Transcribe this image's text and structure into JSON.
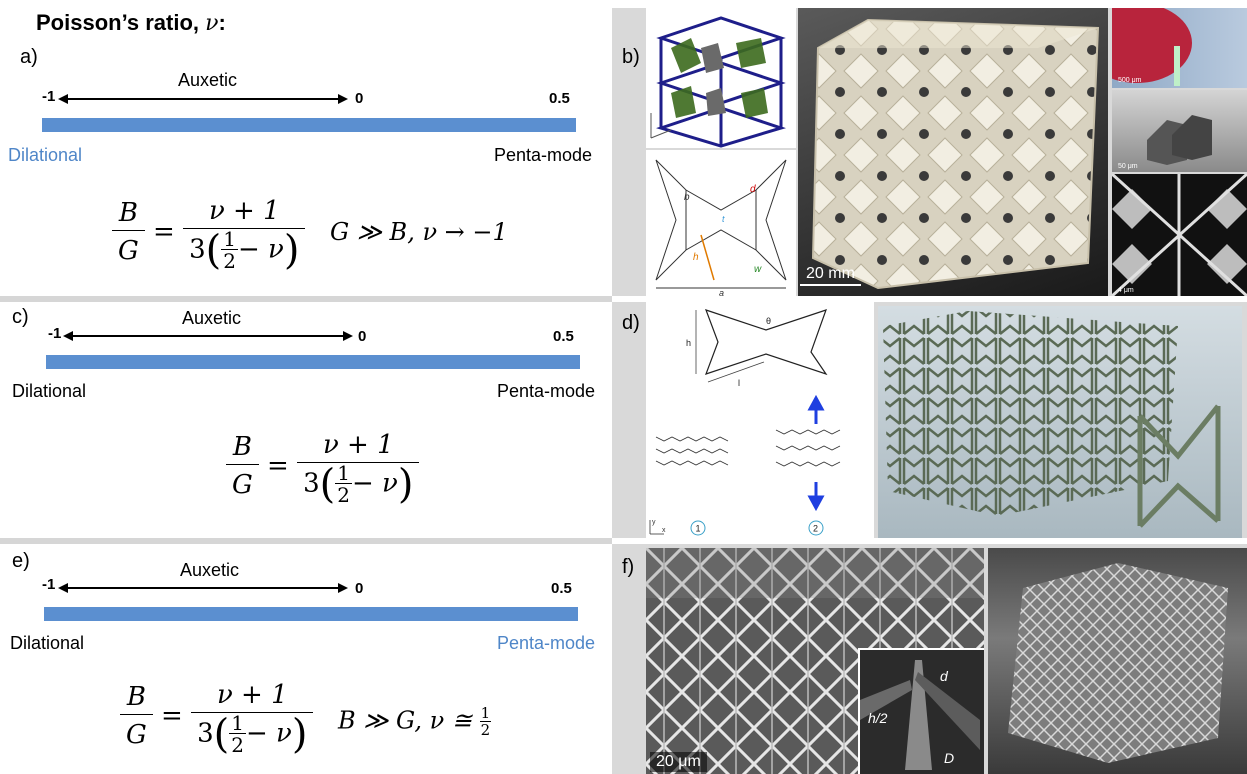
{
  "title": {
    "text": "Poisson’s ratio, ",
    "symbol": "ν",
    "colon": ":"
  },
  "panels": [
    {
      "label": "a)",
      "auxetic": "Auxetic",
      "ticks": [
        "-1",
        "0",
        "0.5"
      ],
      "left": "Dilational",
      "right": "Penta-mode",
      "left_color": "#4f86c8",
      "right_color": "#000000"
    },
    {
      "label": "c)",
      "auxetic": "Auxetic",
      "ticks": [
        "-1",
        "0",
        "0.5"
      ],
      "left": "Dilational",
      "right": "Penta-mode",
      "left_color": "#000000",
      "right_color": "#000000"
    },
    {
      "label": "e)",
      "auxetic": "Auxetic",
      "ticks": [
        "-1",
        "0",
        "0.5"
      ],
      "left": "Dilational",
      "right": "Penta-mode",
      "left_color": "#000000",
      "right_color": "#4f86c8"
    }
  ],
  "formula": {
    "B": "B",
    "G": "G",
    "num": "ν + 1",
    "den_coef": "3",
    "half_n": "1",
    "half_d": "2",
    "den_tail": "− ν",
    "eq": "="
  },
  "conditions": {
    "a": "G ≫ B, ν → −1",
    "e_prefix": "B ≫ G, ν ≅ ",
    "e_n": "1",
    "e_d": "2"
  },
  "image_panels": {
    "b": {
      "label": "b)",
      "scale_main": "20 mm",
      "scale_1": "500 μm",
      "scale_2": "50 μm",
      "scale_3": "4 μm",
      "geo_labels": [
        "b",
        "d",
        "t",
        "h",
        "w",
        "a"
      ]
    },
    "d": {
      "label": "d)",
      "geo_labels": [
        "θ",
        "h",
        "l"
      ],
      "circle_1": "1",
      "circle_2": "2",
      "axes": [
        "y",
        "x"
      ]
    },
    "f": {
      "label": "f)",
      "scale_main": "20 μm",
      "inset_labels": [
        "d",
        "h/2",
        "D"
      ]
    }
  },
  "colors": {
    "bar": "#5b8fd0",
    "accent_blue": "#4f86c8",
    "arrow_blue": "#1f3fe0"
  }
}
